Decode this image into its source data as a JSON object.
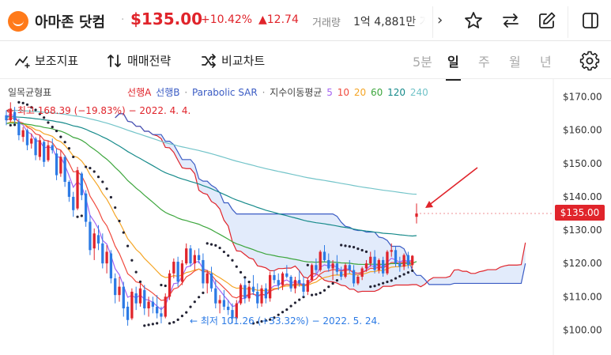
{
  "header": {
    "title": "아마존 닷컴",
    "price": "$135.00",
    "change_pct": "+10.42%",
    "change_abs": "▲12.74",
    "volume_label": "거래량",
    "volume": "1억 4,881만",
    "volume_tail": "거",
    "icons": [
      "amazon-logo",
      "chevron-right-icon",
      "star-icon",
      "compare-arrows-icon",
      "edit-icon",
      "sidebar-icon"
    ]
  },
  "toolbar": {
    "indicators": "보조지표",
    "strategy": "매매전략",
    "compare": "비교차트",
    "periods": [
      "5분",
      "일",
      "주",
      "월",
      "년"
    ],
    "active_period": "일"
  },
  "legend": {
    "ichimoku": "일목균형표",
    "span_a": "선행A",
    "span_b": "선행B",
    "sep1": "·",
    "psar": "Parabolic SAR",
    "sep2": "·",
    "ma_label": "지수이동평균",
    "ma_periods": [
      "5",
      "10",
      "20",
      "60",
      "120",
      "240"
    ]
  },
  "colors": {
    "up": "#e0242b",
    "down": "#2d7be5",
    "ma5": "#a463f2",
    "ma10": "#f04a3e",
    "ma20": "#f5a524",
    "ma60": "#3da63d",
    "ma120": "#168a8a",
    "ma240": "#73c4c9",
    "span_a": "#e0242b",
    "span_b": "#3b5cc4",
    "cloud": "#dde7fa"
  },
  "annotations": {
    "high": "← 최고 168.39 (−19.83%) − 2022. 4. 4.",
    "low": "← 최저 101.26 (+33.32%) − 2022. 5. 24."
  },
  "current_price_tag": "$135.00",
  "chart_data": {
    "type": "candlestick",
    "y_ticks": [
      "$170.00",
      "$160.00",
      "$150.00",
      "$140.00",
      "$130.00",
      "$120.00",
      "$110.00",
      "$100.00"
    ],
    "ylim": [
      97,
      173
    ],
    "grid": false,
    "last_price": 135.0,
    "high_marker": 168.39,
    "low_marker": 101.26,
    "candles": [
      [
        164.5,
        166.0,
        161.5,
        163.0
      ],
      [
        163.0,
        168.4,
        162.5,
        166.5
      ],
      [
        165.5,
        167.0,
        162.0,
        163.0
      ],
      [
        162.5,
        163.5,
        157.0,
        158.5
      ],
      [
        158.0,
        161.0,
        156.5,
        160.0
      ],
      [
        160.0,
        160.5,
        154.0,
        155.5
      ],
      [
        156.0,
        159.0,
        154.5,
        157.5
      ],
      [
        157.5,
        158.0,
        151.0,
        152.5
      ],
      [
        152.0,
        158.5,
        151.0,
        157.0
      ],
      [
        156.5,
        157.0,
        149.0,
        150.5
      ],
      [
        151.0,
        157.0,
        150.5,
        155.5
      ],
      [
        155.5,
        157.5,
        153.0,
        154.0
      ],
      [
        153.0,
        154.5,
        145.0,
        146.5
      ],
      [
        147.0,
        154.0,
        146.0,
        152.0
      ],
      [
        152.0,
        152.5,
        143.0,
        144.5
      ],
      [
        144.5,
        145.0,
        138.5,
        140.0
      ],
      [
        140.0,
        141.5,
        134.0,
        136.0
      ],
      [
        136.5,
        149.0,
        136.0,
        148.0
      ],
      [
        147.0,
        147.5,
        139.0,
        140.5
      ],
      [
        141.0,
        142.0,
        131.0,
        132.5
      ],
      [
        132.5,
        134.5,
        122.5,
        124.0
      ],
      [
        124.5,
        130.5,
        121.0,
        129.0
      ],
      [
        128.5,
        131.5,
        124.0,
        126.0
      ],
      [
        126.0,
        129.0,
        118.5,
        120.0
      ],
      [
        120.0,
        125.5,
        117.0,
        123.5
      ],
      [
        123.0,
        124.0,
        114.0,
        115.5
      ],
      [
        115.5,
        117.0,
        108.0,
        110.5
      ],
      [
        110.5,
        116.0,
        108.5,
        113.0
      ],
      [
        113.0,
        114.5,
        104.0,
        106.5
      ],
      [
        107.0,
        108.5,
        101.3,
        103.0
      ],
      [
        103.5,
        112.5,
        103.0,
        111.5
      ],
      [
        111.0,
        113.0,
        106.0,
        108.0
      ],
      [
        108.0,
        114.0,
        107.0,
        112.5
      ],
      [
        112.0,
        113.5,
        104.5,
        106.5
      ],
      [
        106.5,
        110.0,
        104.0,
        108.5
      ],
      [
        108.5,
        110.0,
        105.0,
        107.0
      ],
      [
        107.0,
        110.5,
        103.5,
        105.0
      ],
      [
        105.0,
        107.0,
        102.0,
        104.0
      ],
      [
        104.0,
        111.0,
        103.5,
        110.0
      ],
      [
        110.0,
        118.0,
        109.0,
        117.0
      ],
      [
        117.0,
        121.5,
        115.5,
        120.5
      ],
      [
        120.5,
        122.0,
        113.0,
        114.5
      ],
      [
        114.5,
        121.0,
        113.5,
        120.0
      ],
      [
        120.0,
        126.0,
        119.5,
        124.5
      ],
      [
        124.5,
        125.5,
        119.0,
        120.0
      ],
      [
        120.0,
        124.0,
        118.0,
        122.5
      ],
      [
        122.5,
        124.5,
        120.0,
        121.0
      ],
      [
        121.0,
        123.0,
        112.5,
        114.0
      ],
      [
        114.0,
        118.0,
        111.0,
        117.0
      ],
      [
        117.0,
        119.0,
        111.5,
        112.5
      ],
      [
        112.5,
        115.0,
        106.5,
        108.0
      ],
      [
        108.0,
        110.5,
        105.0,
        109.0
      ],
      [
        109.0,
        112.0,
        106.0,
        107.0
      ],
      [
        107.0,
        109.0,
        104.5,
        106.0
      ],
      [
        106.0,
        108.0,
        102.0,
        103.5
      ],
      [
        103.5,
        109.0,
        103.0,
        108.0
      ],
      [
        108.0,
        114.0,
        107.5,
        113.5
      ],
      [
        113.5,
        115.5,
        108.0,
        109.5
      ],
      [
        109.5,
        114.0,
        108.5,
        113.0
      ],
      [
        113.0,
        116.5,
        110.5,
        111.5
      ],
      [
        111.5,
        114.0,
        106.5,
        108.0
      ],
      [
        108.0,
        113.5,
        107.0,
        112.5
      ],
      [
        112.5,
        114.0,
        108.0,
        109.5
      ],
      [
        109.5,
        117.5,
        108.5,
        116.5
      ],
      [
        116.5,
        118.0,
        114.0,
        115.0
      ],
      [
        115.0,
        117.0,
        112.0,
        113.5
      ],
      [
        113.5,
        117.5,
        112.0,
        117.0
      ],
      [
        117.0,
        119.5,
        115.5,
        116.0
      ],
      [
        116.0,
        116.5,
        111.5,
        112.5
      ],
      [
        112.5,
        116.0,
        111.0,
        115.0
      ],
      [
        115.0,
        118.0,
        113.0,
        114.0
      ],
      [
        114.0,
        116.0,
        110.0,
        111.5
      ],
      [
        111.5,
        115.5,
        110.5,
        115.0
      ],
      [
        115.0,
        120.0,
        114.5,
        119.5
      ],
      [
        119.5,
        121.5,
        117.0,
        118.0
      ],
      [
        118.0,
        124.0,
        117.5,
        123.5
      ],
      [
        123.5,
        125.5,
        120.5,
        121.0
      ],
      [
        121.0,
        123.0,
        117.5,
        118.5
      ],
      [
        118.5,
        121.0,
        115.0,
        120.0
      ],
      [
        120.0,
        122.5,
        116.5,
        117.5
      ],
      [
        117.5,
        119.0,
        115.0,
        116.0
      ],
      [
        116.0,
        120.0,
        115.5,
        119.5
      ],
      [
        119.5,
        121.0,
        117.0,
        118.0
      ],
      [
        118.0,
        119.5,
        113.0,
        114.0
      ],
      [
        114.0,
        116.5,
        113.5,
        116.0
      ],
      [
        116.0,
        119.0,
        115.0,
        118.5
      ],
      [
        118.5,
        121.0,
        117.5,
        120.0
      ],
      [
        120.0,
        123.5,
        119.0,
        122.0
      ],
      [
        122.0,
        124.0,
        117.0,
        118.0
      ],
      [
        118.0,
        121.5,
        117.0,
        121.0
      ],
      [
        121.0,
        122.0,
        116.0,
        117.0
      ],
      [
        117.0,
        124.0,
        116.5,
        123.5
      ],
      [
        123.5,
        126.0,
        122.0,
        124.0
      ],
      [
        124.0,
        125.0,
        119.0,
        120.0
      ],
      [
        120.0,
        122.0,
        117.5,
        119.0
      ],
      [
        119.0,
        123.0,
        118.0,
        122.5
      ],
      [
        122.5,
        123.5,
        118.5,
        119.5
      ],
      [
        119.5,
        122.5,
        118.5,
        122.3
      ],
      [
        134.0,
        138.0,
        132.0,
        135.0
      ]
    ],
    "series_hint": "EMA 5/10/20/60/120/240, Ichimoku span A/B with cloud, Parabolic SAR dots"
  }
}
